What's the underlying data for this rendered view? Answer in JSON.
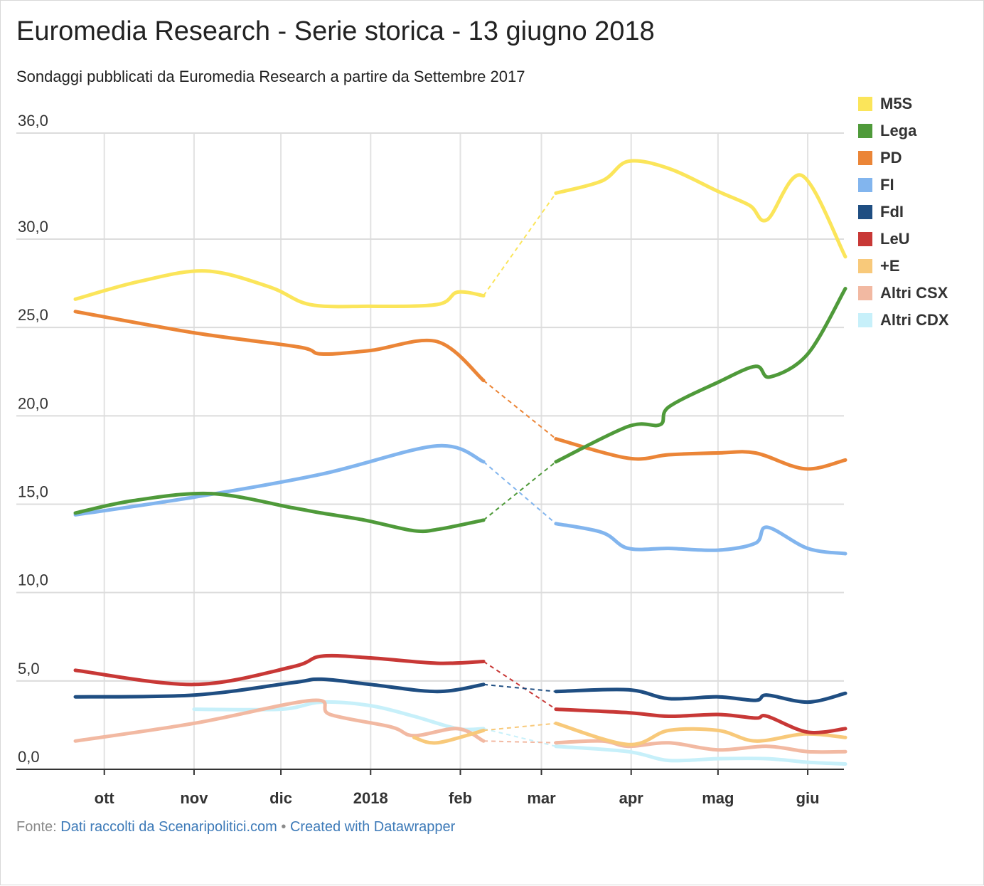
{
  "title": "Euromedia Research - Serie storica - 13 giugno 2018",
  "subtitle": "Sondaggi pubblicati da Euromedia Research a partire da Settembre 2017",
  "footer": {
    "prefix": "Fonte: ",
    "source_link": "Dati raccolti da Scenaripolitici.com",
    "separator": " • ",
    "credit_link": "Created with Datawrapper"
  },
  "chart_data": {
    "type": "line",
    "title": "Euromedia Research - Serie storica - 13 giugno 2018",
    "subtitle": "Sondaggi pubblicati da Euromedia Research a partire da Settembre 2017",
    "xlabel": "",
    "ylabel": "",
    "xlim": [
      "2017-09-21",
      "2018-06-14"
    ],
    "ylim": [
      0,
      36
    ],
    "grid": true,
    "legend_position": "right",
    "dashed_gap": [
      "2018-02-09",
      "2018-03-06"
    ],
    "yticks": [
      {
        "value": 0,
        "label": "0,0"
      },
      {
        "value": 5,
        "label": "5,0"
      },
      {
        "value": 10,
        "label": "10,0"
      },
      {
        "value": 15,
        "label": "15,0"
      },
      {
        "value": 20,
        "label": "20,0"
      },
      {
        "value": 25,
        "label": "25,0"
      },
      {
        "value": 30,
        "label": "30,0"
      },
      {
        "value": 36,
        "label": "36,0"
      }
    ],
    "xticks": [
      {
        "date": "2017-10-01",
        "label": "ott"
      },
      {
        "date": "2017-11-01",
        "label": "nov"
      },
      {
        "date": "2017-12-01",
        "label": "dic"
      },
      {
        "date": "2018-01-01",
        "label": "2018"
      },
      {
        "date": "2018-02-01",
        "label": "feb"
      },
      {
        "date": "2018-03-01",
        "label": "mar"
      },
      {
        "date": "2018-04-01",
        "label": "apr"
      },
      {
        "date": "2018-05-01",
        "label": "mag"
      },
      {
        "date": "2018-06-01",
        "label": "giu"
      }
    ],
    "series": [
      {
        "name": "M5S",
        "color": "#fbe55a",
        "points": [
          [
            "2017-09-21",
            26.6
          ],
          [
            "2017-10-13",
            27.6
          ],
          [
            "2017-11-05",
            28.2
          ],
          [
            "2017-11-27",
            27.3
          ],
          [
            "2017-12-11",
            26.3
          ],
          [
            "2017-12-31",
            26.2
          ],
          [
            "2018-01-24",
            26.3
          ],
          [
            "2018-01-31",
            27.0
          ],
          [
            "2018-02-09",
            26.8
          ],
          [
            "2018-03-06",
            32.6
          ],
          [
            "2018-03-22",
            33.3
          ],
          [
            "2018-03-31",
            34.4
          ],
          [
            "2018-04-14",
            34.0
          ],
          [
            "2018-05-01",
            32.7
          ],
          [
            "2018-05-12",
            31.9
          ],
          [
            "2018-05-18",
            31.1
          ],
          [
            "2018-05-30",
            33.6
          ],
          [
            "2018-06-14",
            29.0
          ]
        ]
      },
      {
        "name": "Lega",
        "color": "#4f9a3a",
        "points": [
          [
            "2017-09-21",
            14.5
          ],
          [
            "2017-10-11",
            15.2
          ],
          [
            "2017-11-07",
            15.6
          ],
          [
            "2017-12-05",
            14.8
          ],
          [
            "2017-12-15",
            14.5
          ],
          [
            "2017-12-30",
            14.1
          ],
          [
            "2018-01-16",
            13.5
          ],
          [
            "2018-01-25",
            13.6
          ],
          [
            "2018-02-09",
            14.1
          ],
          [
            "2018-03-06",
            17.4
          ],
          [
            "2018-03-31",
            19.4
          ],
          [
            "2018-04-11",
            19.5
          ],
          [
            "2018-04-14",
            20.5
          ],
          [
            "2018-05-01",
            21.9
          ],
          [
            "2018-05-14",
            22.8
          ],
          [
            "2018-05-19",
            22.2
          ],
          [
            "2018-06-01",
            23.5
          ],
          [
            "2018-06-14",
            27.2
          ]
        ]
      },
      {
        "name": "PD",
        "color": "#eb8537",
        "points": [
          [
            "2017-09-21",
            25.9
          ],
          [
            "2017-11-01",
            24.7
          ],
          [
            "2017-12-07",
            23.9
          ],
          [
            "2017-12-15",
            23.5
          ],
          [
            "2018-01-01",
            23.7
          ],
          [
            "2018-01-24",
            24.2
          ],
          [
            "2018-02-09",
            22.0
          ],
          [
            "2018-03-06",
            18.7
          ],
          [
            "2018-03-31",
            17.6
          ],
          [
            "2018-04-14",
            17.8
          ],
          [
            "2018-05-01",
            17.9
          ],
          [
            "2018-05-14",
            17.9
          ],
          [
            "2018-05-31",
            17.0
          ],
          [
            "2018-06-14",
            17.5
          ]
        ]
      },
      {
        "name": "FI",
        "color": "#82b5ee",
        "points": [
          [
            "2017-09-21",
            14.4
          ],
          [
            "2017-11-01",
            15.4
          ],
          [
            "2017-12-15",
            16.7
          ],
          [
            "2018-01-24",
            18.3
          ],
          [
            "2018-02-09",
            17.4
          ],
          [
            "2018-03-06",
            13.9
          ],
          [
            "2018-03-22",
            13.4
          ],
          [
            "2018-03-31",
            12.5
          ],
          [
            "2018-04-14",
            12.5
          ],
          [
            "2018-05-01",
            12.4
          ],
          [
            "2018-05-14",
            12.8
          ],
          [
            "2018-05-18",
            13.7
          ],
          [
            "2018-06-01",
            12.5
          ],
          [
            "2018-06-14",
            12.2
          ]
        ]
      },
      {
        "name": "FdI",
        "color": "#1f4e82",
        "points": [
          [
            "2017-09-21",
            4.1
          ],
          [
            "2017-11-01",
            4.2
          ],
          [
            "2017-12-05",
            4.9
          ],
          [
            "2017-12-15",
            5.1
          ],
          [
            "2018-01-01",
            4.8
          ],
          [
            "2018-01-24",
            4.4
          ],
          [
            "2018-02-09",
            4.8
          ],
          [
            "2018-03-06",
            4.4
          ],
          [
            "2018-03-31",
            4.5
          ],
          [
            "2018-04-14",
            4.0
          ],
          [
            "2018-05-01",
            4.1
          ],
          [
            "2018-05-14",
            3.9
          ],
          [
            "2018-05-18",
            4.2
          ],
          [
            "2018-06-01",
            3.8
          ],
          [
            "2018-06-14",
            4.3
          ]
        ]
      },
      {
        "name": "LeU",
        "color": "#c83836",
        "points": [
          [
            "2017-09-21",
            5.6
          ],
          [
            "2017-11-01",
            4.8
          ],
          [
            "2017-12-05",
            5.8
          ],
          [
            "2017-12-15",
            6.4
          ],
          [
            "2018-01-01",
            6.3
          ],
          [
            "2018-01-24",
            6.0
          ],
          [
            "2018-02-09",
            6.1
          ],
          [
            "2018-03-06",
            3.4
          ],
          [
            "2018-03-31",
            3.2
          ],
          [
            "2018-04-14",
            3.0
          ],
          [
            "2018-05-01",
            3.1
          ],
          [
            "2018-05-14",
            2.9
          ],
          [
            "2018-05-18",
            3.0
          ],
          [
            "2018-06-01",
            2.1
          ],
          [
            "2018-06-14",
            2.3
          ]
        ]
      },
      {
        "name": "+E",
        "color": "#f8c97a",
        "points": [
          [
            "2018-01-16",
            1.8
          ],
          [
            "2018-01-24",
            1.5
          ],
          [
            "2018-02-09",
            2.2
          ],
          [
            "2018-03-06",
            2.6
          ],
          [
            "2018-03-31",
            1.4
          ],
          [
            "2018-04-14",
            2.2
          ],
          [
            "2018-05-01",
            2.2
          ],
          [
            "2018-05-14",
            1.6
          ],
          [
            "2018-05-31",
            2.0
          ],
          [
            "2018-06-14",
            1.8
          ]
        ]
      },
      {
        "name": "Altri CSX",
        "color": "#f2b9a2",
        "points": [
          [
            "2017-09-21",
            1.6
          ],
          [
            "2017-11-01",
            2.6
          ],
          [
            "2017-12-12",
            3.9
          ],
          [
            "2017-12-18",
            3.1
          ],
          [
            "2018-01-08",
            2.4
          ],
          [
            "2018-01-16",
            1.9
          ],
          [
            "2018-01-31",
            2.3
          ],
          [
            "2018-02-09",
            1.6
          ],
          [
            "2018-03-06",
            1.5
          ],
          [
            "2018-03-22",
            1.6
          ],
          [
            "2018-03-31",
            1.3
          ],
          [
            "2018-04-14",
            1.5
          ],
          [
            "2018-05-01",
            1.1
          ],
          [
            "2018-05-18",
            1.3
          ],
          [
            "2018-06-01",
            1.0
          ],
          [
            "2018-06-14",
            1.0
          ]
        ]
      },
      {
        "name": "Altri CDX",
        "color": "#c7f0fa",
        "points": [
          [
            "2017-11-01",
            3.4
          ],
          [
            "2017-12-01",
            3.4
          ],
          [
            "2017-12-15",
            3.8
          ],
          [
            "2018-01-01",
            3.6
          ],
          [
            "2018-01-16",
            3.0
          ],
          [
            "2018-01-31",
            2.3
          ],
          [
            "2018-02-09",
            2.3
          ],
          [
            "2018-03-06",
            1.3
          ],
          [
            "2018-03-31",
            1.0
          ],
          [
            "2018-04-14",
            0.5
          ],
          [
            "2018-05-01",
            0.6
          ],
          [
            "2018-05-18",
            0.6
          ],
          [
            "2018-06-01",
            0.4
          ],
          [
            "2018-06-14",
            0.3
          ]
        ]
      }
    ]
  }
}
